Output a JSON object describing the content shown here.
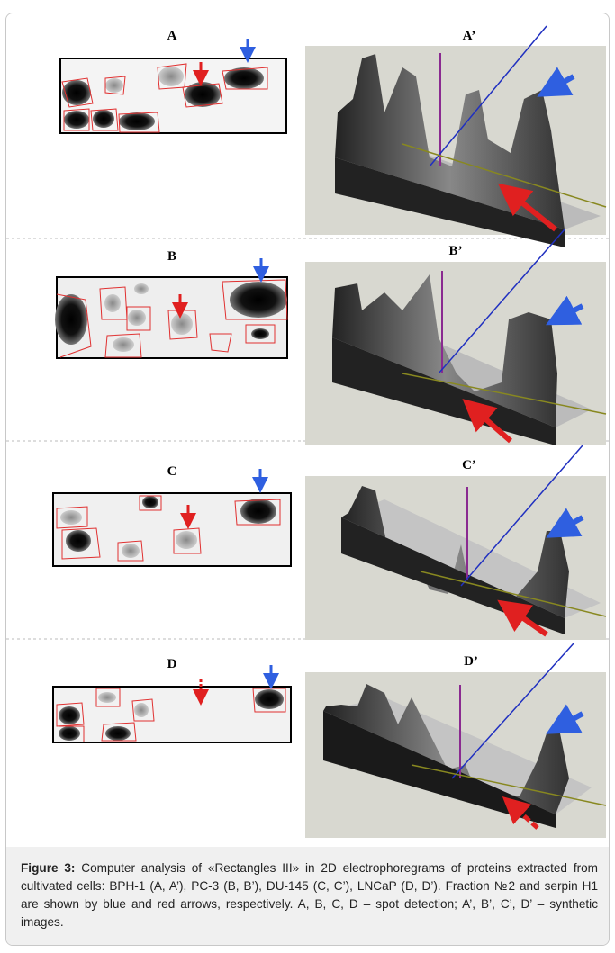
{
  "figure": {
    "panels": [
      {
        "left": "A",
        "right": "A’"
      },
      {
        "left": "B",
        "right": "B’"
      },
      {
        "left": "C",
        "right": "C’"
      },
      {
        "left": "D",
        "right": "D’"
      }
    ],
    "caption": {
      "label": "Figure 3:",
      "text": "Computer analysis of «Rectangles III» in 2D electrophoregrams of proteins extracted from cultivated cells: BPH-1 (A, A’), PC-3 (B, B’), DU-145 (C, C’), LNCaP (D, D’). Fraction №2 and serpin H1 are shown by blue and red arrows, respectively. A, B, C, D – spot detection; A’, B’, C’, D’ – synthetic images."
    }
  }
}
